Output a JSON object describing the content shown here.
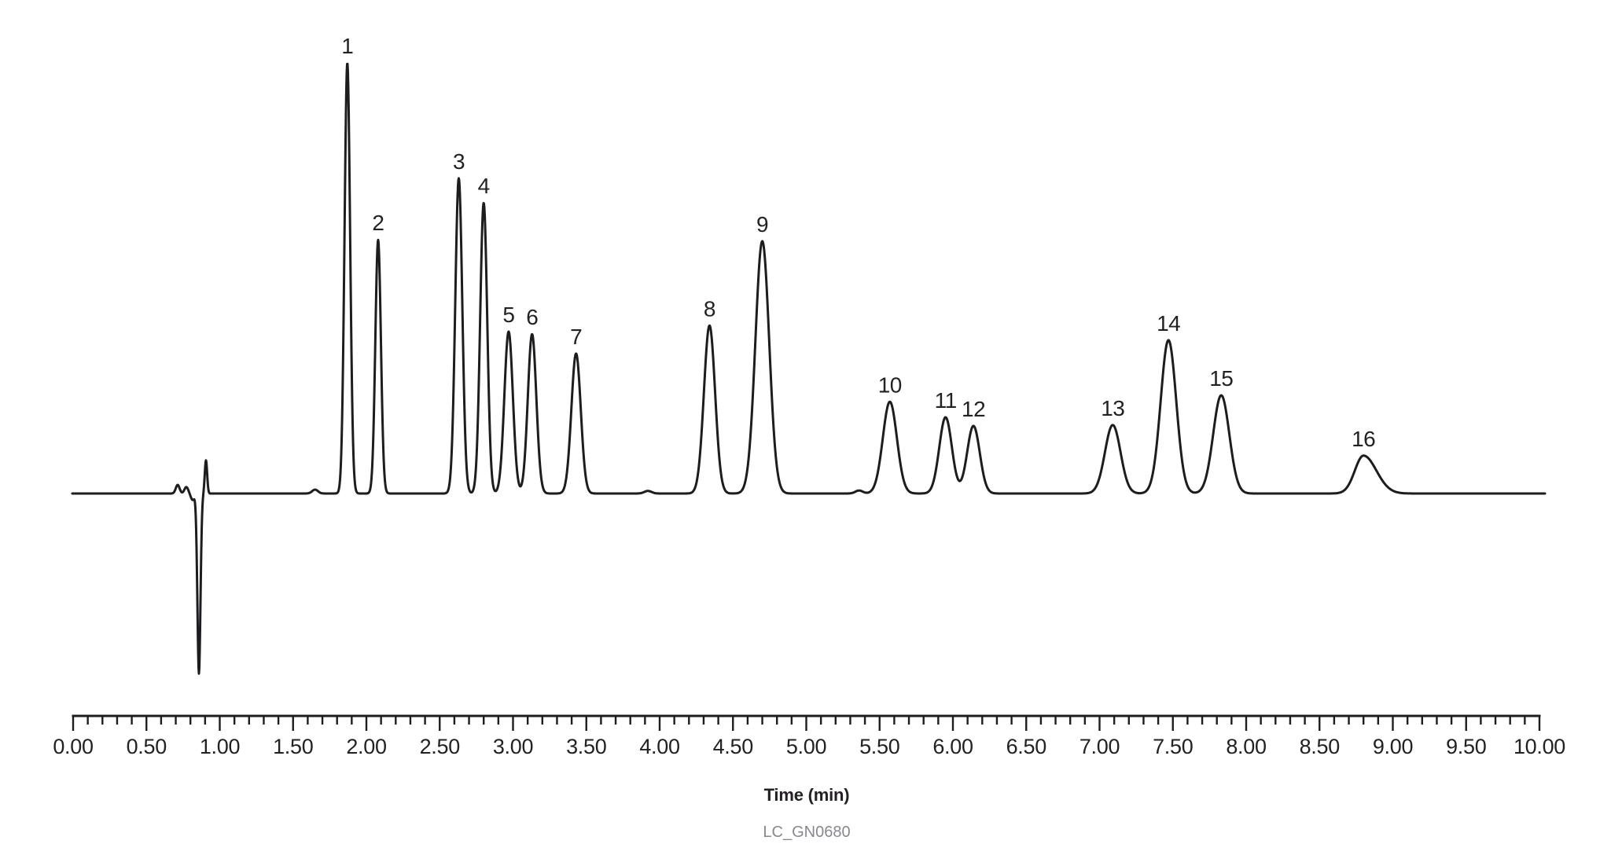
{
  "figure": {
    "background_color": "#ffffff",
    "trace_color": "#1d1d1f",
    "text_color": "#242124",
    "caption_color": "#88888d"
  },
  "axis": {
    "label": "Time (min)",
    "t_min": 0,
    "t_max": 10,
    "major_tick_interval_min": 0.5,
    "minor_tick_interval_min": 0.1,
    "tick_labels": [
      "0.00",
      "0.50",
      "1.00",
      "1.50",
      "2.00",
      "2.50",
      "3.00",
      "3.50",
      "4.00",
      "4.50",
      "5.00",
      "5.50",
      "6.00",
      "6.50",
      "7.00",
      "7.50",
      "8.00",
      "8.50",
      "9.00",
      "9.50",
      "10.00"
    ]
  },
  "caption": "LC_GN0680",
  "chart_data": {
    "type": "line",
    "title": "",
    "xlabel": "Time (min)",
    "ylabel": "",
    "x_range_min": [
      0,
      10
    ],
    "y_axis_visible": false,
    "grid": false,
    "legend": false,
    "description": "LC chromatogram: detector response vs time with 16 numbered peaks and an injection disturbance near 0.86 min; heights normalized to peak 1 = 1.0",
    "peaks": [
      {
        "label": "1",
        "time_min": 1.87,
        "height": 1.0,
        "sigma_min": 0.019
      },
      {
        "label": "2",
        "time_min": 2.08,
        "height": 0.589,
        "sigma_min": 0.019
      },
      {
        "label": "3",
        "time_min": 2.63,
        "height": 0.732,
        "sigma_min": 0.024
      },
      {
        "label": "4",
        "time_min": 2.8,
        "height": 0.675,
        "sigma_min": 0.024
      },
      {
        "label": "5",
        "time_min": 2.97,
        "height": 0.376,
        "sigma_min": 0.029
      },
      {
        "label": "6",
        "time_min": 3.13,
        "height": 0.37,
        "sigma_min": 0.029
      },
      {
        "label": "7",
        "time_min": 3.43,
        "height": 0.325,
        "sigma_min": 0.032
      },
      {
        "label": "8",
        "time_min": 4.34,
        "height": 0.39,
        "sigma_min": 0.038
      },
      {
        "label": "9",
        "time_min": 4.7,
        "height": 0.586,
        "sigma_min": 0.047
      },
      {
        "label": "10",
        "time_min": 5.57,
        "height": 0.213,
        "sigma_min": 0.048
      },
      {
        "label": "11",
        "time_min": 5.95,
        "height": 0.177,
        "sigma_min": 0.043
      },
      {
        "label": "12",
        "time_min": 6.14,
        "height": 0.157,
        "sigma_min": 0.043
      },
      {
        "label": "13",
        "time_min": 7.09,
        "height": 0.159,
        "sigma_min": 0.053
      },
      {
        "label": "14",
        "time_min": 7.47,
        "height": 0.356,
        "sigma_min": 0.053
      },
      {
        "label": "15",
        "time_min": 7.83,
        "height": 0.228,
        "sigma_min": 0.055
      },
      {
        "label": "16",
        "time_min": 8.8,
        "height": 0.088,
        "sigma_min": 0.059,
        "sigma_right_min": 0.088
      }
    ],
    "baseline_artifacts": [
      {
        "name": "pre-injection-bump-1",
        "time_min": 0.713,
        "height": 0.02,
        "sigma_min": 0.013
      },
      {
        "name": "pre-injection-bump-2",
        "time_min": 0.772,
        "height": 0.015,
        "sigma_min": 0.013
      },
      {
        "name": "pre-injection-dip",
        "time_min": 0.815,
        "height": -0.015,
        "sigma_min": 0.012
      },
      {
        "name": "injection-dip",
        "time_min": 0.858,
        "height": -0.418,
        "sigma_min": 0.0105
      },
      {
        "name": "injection-spike",
        "time_min": 0.906,
        "height": 0.077,
        "sigma_min": 0.008
      },
      {
        "name": "baseline-ripple-1",
        "time_min": 1.65,
        "height": 0.009,
        "sigma_min": 0.02
      },
      {
        "name": "baseline-ripple-2",
        "time_min": 3.92,
        "height": 0.006,
        "sigma_min": 0.025
      },
      {
        "name": "baseline-ripple-3",
        "time_min": 5.36,
        "height": 0.007,
        "sigma_min": 0.025
      }
    ]
  }
}
